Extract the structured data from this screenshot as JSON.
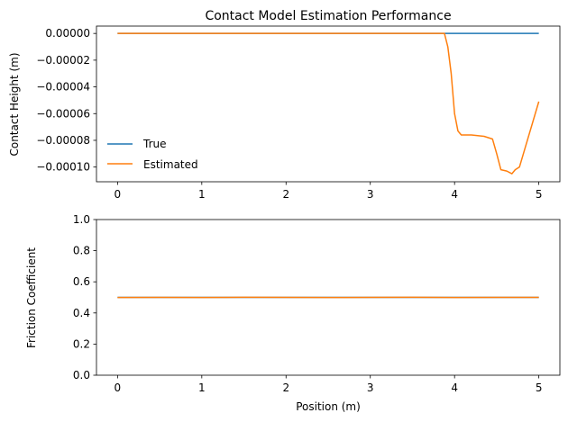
{
  "chart_data": [
    {
      "type": "line",
      "title": "Contact Model Estimation Performance",
      "xlabel": "",
      "ylabel": "Contact Height (m)",
      "xlim": [
        -0.25,
        5.25
      ],
      "ylim": [
        -0.000111,
        5.5e-06
      ],
      "xticks": [
        0,
        1,
        2,
        3,
        4,
        5
      ],
      "xtick_labels": [
        "0",
        "1",
        "2",
        "3",
        "4",
        "5"
      ],
      "yticks": [
        0,
        -2e-05,
        -4e-05,
        -6e-05,
        -8e-05,
        -0.0001
      ],
      "ytick_labels": [
        "0.00000",
        "−0.00002",
        "−0.00004",
        "−0.00006",
        "−0.00008",
        "−0.00010"
      ],
      "legend": {
        "placement": "center-left",
        "entries": [
          "True",
          "Estimated"
        ]
      },
      "grid": false,
      "series": [
        {
          "name": "True",
          "color": "#1f77b4",
          "x": [
            0,
            5
          ],
          "y": [
            0,
            0
          ]
        },
        {
          "name": "Estimated",
          "color": "#ff7f0e",
          "x": [
            0,
            3.5,
            3.88,
            3.92,
            3.96,
            4.0,
            4.04,
            4.08,
            4.2,
            4.35,
            4.45,
            4.5,
            4.55,
            4.62,
            4.68,
            4.72,
            4.77,
            5.0
          ],
          "y": [
            0,
            0,
            0,
            -1e-05,
            -3e-05,
            -6e-05,
            -7.3e-05,
            -7.6e-05,
            -7.6e-05,
            -7.7e-05,
            -7.9e-05,
            -9e-05,
            -0.000102,
            -0.000103,
            -0.000105,
            -0.000102,
            -0.0001,
            -5.1e-05
          ]
        }
      ]
    },
    {
      "type": "line",
      "title": "",
      "xlabel": "Position (m)",
      "ylabel": "Friction Coefficient",
      "xlim": [
        -0.25,
        5.25
      ],
      "ylim": [
        0,
        1
      ],
      "xticks": [
        0,
        1,
        2,
        3,
        4,
        5
      ],
      "xtick_labels": [
        "0",
        "1",
        "2",
        "3",
        "4",
        "5"
      ],
      "yticks": [
        0,
        0.2,
        0.4,
        0.6,
        0.8,
        1.0
      ],
      "ytick_labels": [
        "0.0",
        "0.2",
        "0.4",
        "0.6",
        "0.8",
        "1.0"
      ],
      "grid": false,
      "series": [
        {
          "color": "#1f77b4",
          "x": [
            0,
            5
          ],
          "y": [
            0.5,
            0.5
          ]
        },
        {
          "color": "#ff7f0e",
          "x": [
            0,
            0.5,
            1,
            1.5,
            2,
            2.5,
            3,
            3.5,
            4,
            4.5,
            5
          ],
          "y": [
            0.499,
            0.5,
            0.499,
            0.501,
            0.5,
            0.499,
            0.5,
            0.501,
            0.499,
            0.5,
            0.5
          ]
        }
      ]
    }
  ]
}
